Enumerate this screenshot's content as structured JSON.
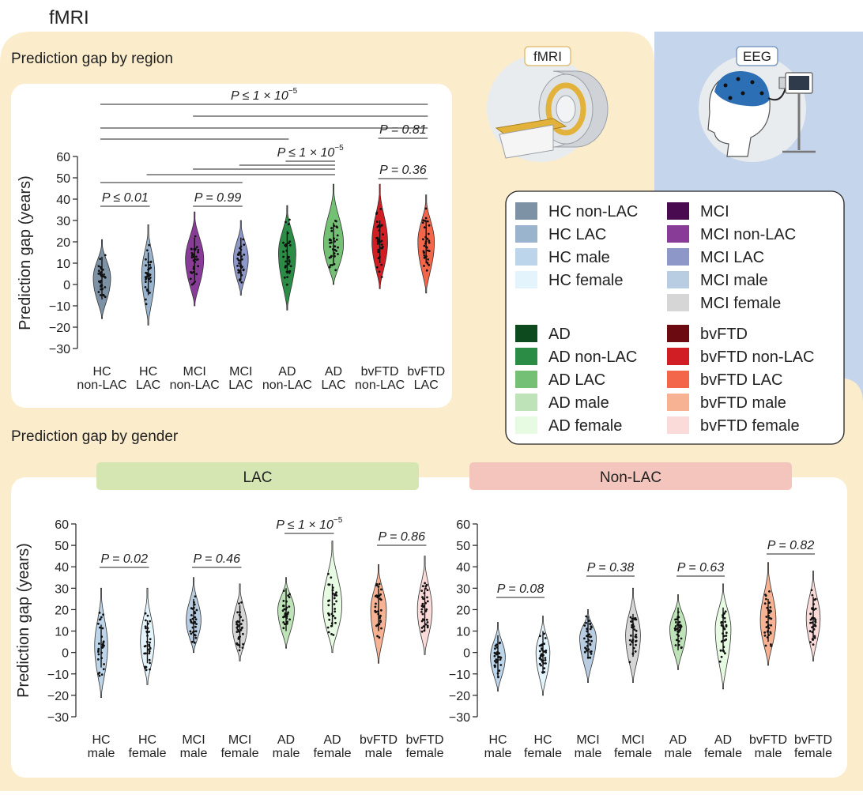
{
  "page_title": "fMRI",
  "colors": {
    "fmri_panel": "#fbeccb",
    "eeg_panel": "#c5d5ec",
    "card": "#ffffff",
    "lac_banner": "#d6e6b3",
    "nonlac_banner": "#f4c5bd",
    "figure_circle": "#e9ecef"
  },
  "sections": {
    "region_title": "Prediction gap by region",
    "gender_title": "Prediction gap by gender",
    "lac_banner": "LAC",
    "nonlac_banner": "Non-LAC"
  },
  "modality_labels": {
    "fmri": "fMRI",
    "eeg": "EEG"
  },
  "legend": {
    "items": [
      {
        "label": "HC non-LAC",
        "color": "#7d92a5"
      },
      {
        "label": "HC LAC",
        "color": "#99b4cc"
      },
      {
        "label": "HC male",
        "color": "#bdd5ea"
      },
      {
        "label": "HC female",
        "color": "#e3f4fd"
      },
      {
        "label": "MCI",
        "color": "#4a0a4f"
      },
      {
        "label": "MCI non-LAC",
        "color": "#883c98"
      },
      {
        "label": "MCI LAC",
        "color": "#8e98c8"
      },
      {
        "label": "MCI male",
        "color": "#b9cde2"
      },
      {
        "label": "MCI female",
        "color": "#d6d6d6"
      },
      {
        "label": "AD",
        "color": "#0d4a1e"
      },
      {
        "label": "AD non-LAC",
        "color": "#2b8c45"
      },
      {
        "label": "AD LAC",
        "color": "#74c175"
      },
      {
        "label": "AD male",
        "color": "#bfe3b8"
      },
      {
        "label": "AD female",
        "color": "#e6fbe2"
      },
      {
        "label": "bvFTD",
        "color": "#6b0a10"
      },
      {
        "label": "bvFTD non-LAC",
        "color": "#d01e24"
      },
      {
        "label": "bvFTD LAC",
        "color": "#f4664a"
      },
      {
        "label": "bvFTD male",
        "color": "#f6b293"
      },
      {
        "label": "bvFTD female",
        "color": "#fbdada"
      }
    ]
  },
  "chart_data": [
    {
      "type": "violin",
      "title": "Prediction gap by region",
      "ylabel": "Prediction gap (years)",
      "ylim": [
        -30,
        60
      ],
      "yticks": [
        "60",
        "50",
        "40",
        "30",
        "20",
        "10",
        "0",
        "−10",
        "−20",
        "−30"
      ],
      "categories": [
        {
          "l1": "HC",
          "l2": "non-LAC",
          "min": -16,
          "max": 21,
          "mode": 3,
          "width": 1.0,
          "color": "#7d92a5"
        },
        {
          "l1": "HC",
          "l2": "LAC",
          "min": -19,
          "max": 28,
          "mode": 5,
          "width": 0.75,
          "color": "#99b4cc"
        },
        {
          "l1": "MCI",
          "l2": "non-LAC",
          "min": -10,
          "max": 34,
          "mode": 12,
          "width": 1.05,
          "color": "#883c98"
        },
        {
          "l1": "MCI",
          "l2": "LAC",
          "min": -5,
          "max": 30,
          "mode": 12,
          "width": 0.85,
          "color": "#8e98c8"
        },
        {
          "l1": "AD",
          "l2": "non-LAC",
          "min": -12,
          "max": 37,
          "mode": 15,
          "width": 1.0,
          "color": "#2b8c45"
        },
        {
          "l1": "AD",
          "l2": "LAC",
          "min": 0,
          "max": 47,
          "mode": 19,
          "width": 1.15,
          "color": "#74c175"
        },
        {
          "l1": "bvFTD",
          "l2": "non-LAC",
          "min": -2,
          "max": 47,
          "mode": 20,
          "width": 0.9,
          "color": "#d01e24"
        },
        {
          "l1": "bvFTD",
          "l2": "LAC",
          "min": -4,
          "max": 42,
          "mode": 20,
          "width": 0.95,
          "color": "#f4664a"
        }
      ],
      "annotations": [
        {
          "text": "P ≤ 1 × 10",
          "sup": "−5"
        },
        {
          "text": "P = 0.81"
        },
        {
          "text": "P ≤ 1 × 10",
          "sup": "−5"
        },
        {
          "text": "P = 0.36"
        },
        {
          "text": "P ≤ 0.01"
        },
        {
          "text": "P = 0.99"
        }
      ]
    },
    {
      "type": "violin",
      "title": "LAC",
      "ylabel": "Prediction gap (years)",
      "ylim": [
        -30,
        60
      ],
      "yticks": [
        "60",
        "50",
        "40",
        "30",
        "20",
        "10",
        "0",
        "−10",
        "−20",
        "−30"
      ],
      "categories": [
        {
          "l1": "HC",
          "l2": "male",
          "min": -21,
          "max": 30,
          "mode": 3,
          "width": 0.75,
          "color": "#bdd5ea"
        },
        {
          "l1": "HC",
          "l2": "female",
          "min": -15,
          "max": 30,
          "mode": 5,
          "width": 0.8,
          "color": "#e3f4fd"
        },
        {
          "l1": "MCI",
          "l2": "male",
          "min": 0,
          "max": 35,
          "mode": 15,
          "width": 0.85,
          "color": "#b9cde2"
        },
        {
          "l1": "MCI",
          "l2": "female",
          "min": -4,
          "max": 32,
          "mode": 12,
          "width": 0.85,
          "color": "#d6d6d6"
        },
        {
          "l1": "AD",
          "l2": "male",
          "min": 2,
          "max": 35,
          "mode": 20,
          "width": 0.95,
          "color": "#bfe3b8"
        },
        {
          "l1": "AD",
          "l2": "female",
          "min": 0,
          "max": 52,
          "mode": 22,
          "width": 1.1,
          "color": "#e6fbe2"
        },
        {
          "l1": "bvFTD",
          "l2": "male",
          "min": -5,
          "max": 41,
          "mode": 20,
          "width": 0.9,
          "color": "#f6b293"
        },
        {
          "l1": "bvFTD",
          "l2": "female",
          "min": -1,
          "max": 45,
          "mode": 20,
          "width": 0.85,
          "color": "#fbdada"
        }
      ],
      "annotations": [
        {
          "text": "P = 0.02"
        },
        {
          "text": "P = 0.46"
        },
        {
          "text": "P ≤ 1 × 10",
          "sup": "−5"
        },
        {
          "text": "P = 0.86"
        }
      ]
    },
    {
      "type": "violin",
      "title": "Non-LAC",
      "ylim": [
        -30,
        60
      ],
      "yticks": [
        "60",
        "50",
        "40",
        "30",
        "20",
        "10",
        "0",
        "−10",
        "−20",
        "−30"
      ],
      "categories": [
        {
          "l1": "HC",
          "l2": "male",
          "min": -18,
          "max": 14,
          "mode": -2,
          "width": 0.85,
          "color": "#bdd5ea"
        },
        {
          "l1": "HC",
          "l2": "female",
          "min": -20,
          "max": 17,
          "mode": 0,
          "width": 0.8,
          "color": "#e3f4fd"
        },
        {
          "l1": "MCI",
          "l2": "male",
          "min": -14,
          "max": 20,
          "mode": 7,
          "width": 0.95,
          "color": "#b9cde2"
        },
        {
          "l1": "MCI",
          "l2": "female",
          "min": -14,
          "max": 30,
          "mode": 8,
          "width": 0.85,
          "color": "#d6d6d6"
        },
        {
          "l1": "AD",
          "l2": "male",
          "min": -8,
          "max": 27,
          "mode": 11,
          "width": 0.95,
          "color": "#bfe3b8"
        },
        {
          "l1": "AD",
          "l2": "female",
          "min": -17,
          "max": 32,
          "mode": 11,
          "width": 0.9,
          "color": "#e6fbe2"
        },
        {
          "l1": "bvFTD",
          "l2": "male",
          "min": -6,
          "max": 42,
          "mode": 15,
          "width": 0.9,
          "color": "#f6b293"
        },
        {
          "l1": "bvFTD",
          "l2": "female",
          "min": -4,
          "max": 38,
          "mode": 16,
          "width": 0.8,
          "color": "#fbdada"
        }
      ],
      "annotations": [
        {
          "text": "P = 0.08"
        },
        {
          "text": "P = 0.38"
        },
        {
          "text": "P = 0.63"
        },
        {
          "text": "P = 0.82"
        }
      ]
    }
  ]
}
